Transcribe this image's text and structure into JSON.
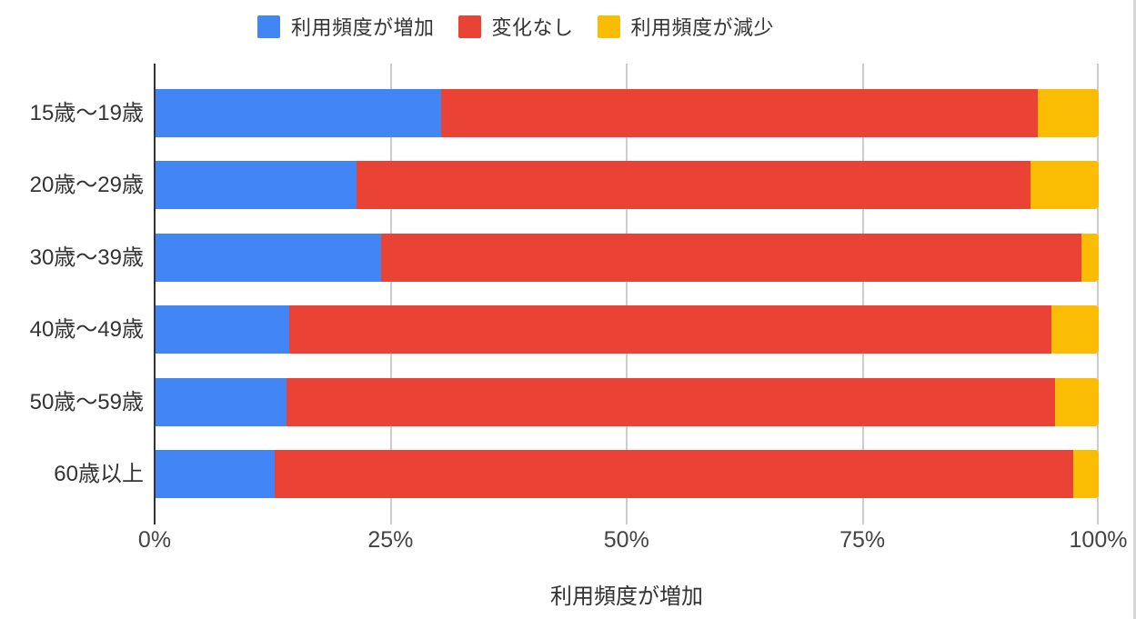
{
  "chart_data": {
    "type": "bar",
    "orientation": "horizontal",
    "stacked": "percent",
    "title": "",
    "xlabel": "利用頻度が増加",
    "ylabel": "",
    "xlim": [
      0,
      100
    ],
    "x_ticks": [
      "0%",
      "25%",
      "50%",
      "75%",
      "100%"
    ],
    "grid": "vertical",
    "legend_position": "top",
    "categories": [
      "15歳〜19歳",
      "20歳〜29歳",
      "30歳〜39歳",
      "40歳〜49歳",
      "50歳〜59歳",
      "60歳以上"
    ],
    "series": [
      {
        "name": "利用頻度が増加",
        "color": "#4285F4",
        "values": [
          30.3,
          21.4,
          24.0,
          14.3,
          14.0,
          12.7
        ]
      },
      {
        "name": "変化なし",
        "color": "#EA4335",
        "values": [
          63.2,
          71.4,
          74.2,
          80.7,
          81.4,
          84.6
        ]
      },
      {
        "name": "利用頻度が減少",
        "color": "#FBBC04",
        "values": [
          6.5,
          7.2,
          1.8,
          5.0,
          4.6,
          2.7
        ]
      }
    ],
    "colors": {
      "increase": "#4285F4",
      "no_change": "#EA4335",
      "decrease": "#FBBC04",
      "gridline": "#cccccc",
      "axis_line": "#333333"
    }
  }
}
